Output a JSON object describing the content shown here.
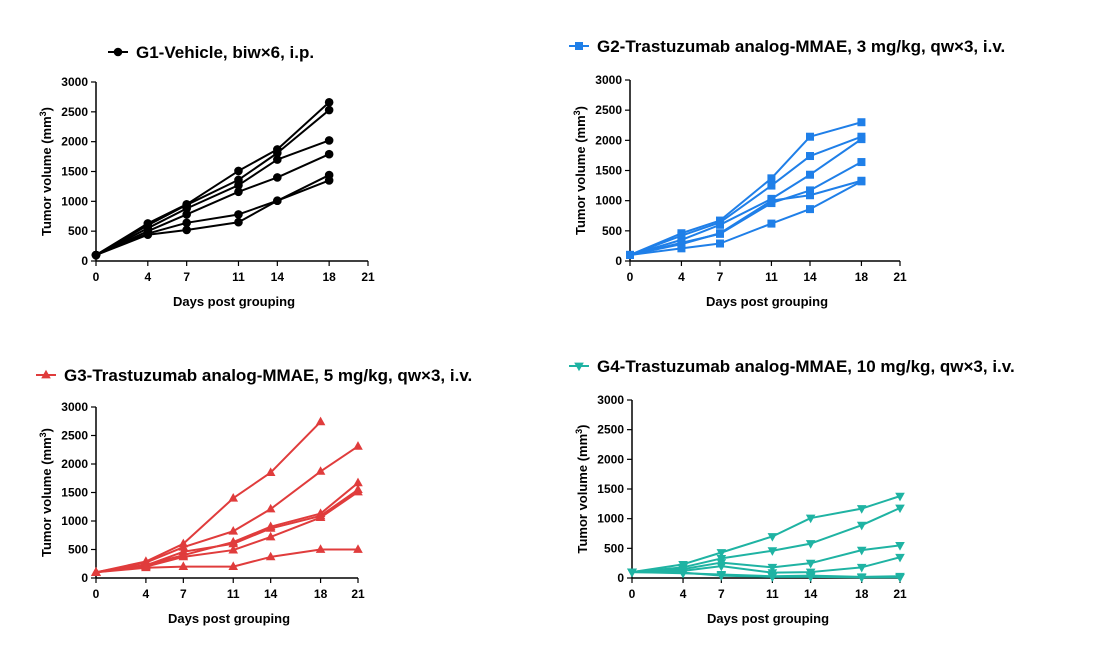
{
  "chart_data": [
    {
      "type": "line",
      "title": "",
      "xlabel": "Days post grouping",
      "ylabel": "Tumor volume (mm",
      "ylabel_sup": "3",
      "ylabel_close": ")",
      "xlim": [
        0,
        21
      ],
      "ylim": [
        0,
        3000
      ],
      "xticks": [
        0,
        4,
        7,
        11,
        14,
        18,
        21
      ],
      "yticks": [
        0,
        500,
        1000,
        1500,
        2000,
        2500,
        3000
      ],
      "xtick_labels": [
        "0",
        "4",
        "7",
        "11",
        "14",
        "18",
        "21"
      ],
      "ytick_labels": [
        "0",
        "500",
        "1000",
        "1500",
        "2000",
        "2500",
        "3000"
      ],
      "grid": false,
      "legend": {
        "label": "G1-Vehicle, biw×6, i.p.",
        "position": "top"
      },
      "marker": "circle",
      "color": "#000000",
      "series": [
        {
          "x": [
            0,
            4,
            7,
            11,
            14,
            18
          ],
          "values": [
            100,
            630,
            950,
            1510,
            1870,
            2660
          ]
        },
        {
          "x": [
            0,
            4,
            7,
            11,
            14,
            18
          ],
          "values": [
            100,
            600,
            940,
            1360,
            1810,
            2530
          ]
        },
        {
          "x": [
            0,
            4,
            7,
            11,
            14,
            18
          ],
          "values": [
            100,
            550,
            880,
            1270,
            1700,
            2020
          ]
        },
        {
          "x": [
            0,
            4,
            7,
            11,
            14,
            18
          ],
          "values": [
            100,
            500,
            780,
            1160,
            1400,
            1790
          ]
        },
        {
          "x": [
            0,
            4,
            7,
            11,
            14,
            18
          ],
          "values": [
            100,
            460,
            640,
            780,
            1010,
            1440
          ]
        },
        {
          "x": [
            0,
            4,
            7,
            11,
            14,
            18
          ],
          "values": [
            100,
            440,
            520,
            650,
            1010,
            1350
          ]
        }
      ]
    },
    {
      "type": "line",
      "title": "",
      "xlabel": "Days post grouping",
      "ylabel": "Tumor volume (mm",
      "ylabel_sup": "3",
      "ylabel_close": ")",
      "xlim": [
        0,
        21
      ],
      "ylim": [
        0,
        3000
      ],
      "xticks": [
        0,
        4,
        7,
        11,
        14,
        18,
        21
      ],
      "yticks": [
        0,
        500,
        1000,
        1500,
        2000,
        2500,
        3000
      ],
      "xtick_labels": [
        "0",
        "4",
        "7",
        "11",
        "14",
        "18",
        "21"
      ],
      "ytick_labels": [
        "0",
        "500",
        "1000",
        "1500",
        "2000",
        "2500",
        "3000"
      ],
      "grid": false,
      "legend": {
        "label": "G2-Trastuzumab analog-MMAE, 3 mg/kg, qw×3, i.v.",
        "position": "top"
      },
      "marker": "square",
      "color": "#1f7fe8",
      "series": [
        {
          "x": [
            0,
            4,
            7,
            11,
            14,
            18
          ],
          "values": [
            100,
            460,
            670,
            1370,
            2060,
            2300
          ]
        },
        {
          "x": [
            0,
            4,
            7,
            11,
            14,
            18
          ],
          "values": [
            100,
            420,
            640,
            1250,
            1740,
            2060
          ]
        },
        {
          "x": [
            0,
            4,
            7,
            11,
            14,
            18
          ],
          "values": [
            100,
            350,
            600,
            1030,
            1430,
            2020
          ]
        },
        {
          "x": [
            0,
            4,
            7,
            11,
            14,
            18
          ],
          "values": [
            100,
            300,
            450,
            960,
            1170,
            1640
          ]
        },
        {
          "x": [
            0,
            4,
            7,
            11,
            14,
            18
          ],
          "values": [
            100,
            280,
            460,
            1000,
            1090,
            1330
          ]
        },
        {
          "x": [
            0,
            4,
            7,
            11,
            14,
            18
          ],
          "values": [
            100,
            210,
            290,
            620,
            860,
            1320
          ]
        }
      ]
    },
    {
      "type": "line",
      "title": "",
      "xlabel": "Days post grouping",
      "ylabel": "Tumor volume (mm",
      "ylabel_sup": "3",
      "ylabel_close": ")",
      "xlim": [
        0,
        21
      ],
      "ylim": [
        0,
        3000
      ],
      "xticks": [
        0,
        4,
        7,
        11,
        14,
        18,
        21
      ],
      "yticks": [
        0,
        500,
        1000,
        1500,
        2000,
        2500,
        3000
      ],
      "xtick_labels": [
        "0",
        "4",
        "7",
        "11",
        "14",
        "18",
        "21"
      ],
      "ytick_labels": [
        "0",
        "500",
        "1000",
        "1500",
        "2000",
        "2500",
        "3000"
      ],
      "grid": false,
      "legend": {
        "label": "G3-Trastuzumab analog-MMAE, 5 mg/kg, qw×3, i.v.",
        "position": "top"
      },
      "marker": "triangle-up",
      "color": "#e03c3c",
      "series": [
        {
          "x": [
            0,
            4,
            7,
            11,
            14,
            18
          ],
          "values": [
            100,
            290,
            600,
            1400,
            1850,
            2740
          ]
        },
        {
          "x": [
            0,
            4,
            7,
            11,
            14,
            18,
            21
          ],
          "values": [
            100,
            270,
            540,
            820,
            1210,
            1870,
            2310
          ]
        },
        {
          "x": [
            0,
            4,
            7,
            11,
            14,
            18,
            21
          ],
          "values": [
            100,
            230,
            400,
            630,
            900,
            1130,
            1670
          ]
        },
        {
          "x": [
            0,
            4,
            7,
            11,
            14,
            18,
            21
          ],
          "values": [
            100,
            220,
            460,
            600,
            870,
            1090,
            1550
          ]
        },
        {
          "x": [
            0,
            4,
            7,
            11,
            14,
            18,
            21
          ],
          "values": [
            100,
            200,
            370,
            490,
            720,
            1060,
            1510
          ]
        },
        {
          "x": [
            0,
            4,
            7,
            11,
            14,
            18,
            21
          ],
          "values": [
            100,
            180,
            200,
            200,
            370,
            500,
            500
          ]
        }
      ]
    },
    {
      "type": "line",
      "title": "",
      "xlabel": "Days post grouping",
      "ylabel": "Tumor volume (mm",
      "ylabel_sup": "3",
      "ylabel_close": ")",
      "xlim": [
        0,
        21
      ],
      "ylim": [
        0,
        3000
      ],
      "xticks": [
        0,
        4,
        7,
        11,
        14,
        18,
        21
      ],
      "yticks": [
        0,
        500,
        1000,
        1500,
        2000,
        2500,
        3000
      ],
      "xtick_labels": [
        "0",
        "4",
        "7",
        "11",
        "14",
        "18",
        "21"
      ],
      "ytick_labels": [
        "0",
        "500",
        "1000",
        "1500",
        "2000",
        "2500",
        "3000"
      ],
      "grid": false,
      "legend": {
        "label": "G4-Trastuzumab analog-MMAE, 10 mg/kg, qw×3, i.v.",
        "position": "top"
      },
      "marker": "triangle-down",
      "color": "#1fb3a3",
      "series": [
        {
          "x": [
            0,
            4,
            7,
            11,
            14,
            18,
            21
          ],
          "values": [
            100,
            230,
            430,
            700,
            1010,
            1170,
            1380
          ]
        },
        {
          "x": [
            0,
            4,
            7,
            11,
            14,
            18,
            21
          ],
          "values": [
            100,
            180,
            330,
            460,
            580,
            890,
            1180
          ]
        },
        {
          "x": [
            0,
            4,
            7,
            11,
            14,
            18,
            21
          ],
          "values": [
            100,
            150,
            260,
            180,
            250,
            470,
            550
          ]
        },
        {
          "x": [
            0,
            4,
            7,
            11,
            14,
            18,
            21
          ],
          "values": [
            100,
            120,
            200,
            90,
            100,
            180,
            350
          ]
        },
        {
          "x": [
            0,
            4,
            7,
            11,
            14,
            18,
            21
          ],
          "values": [
            100,
            80,
            60,
            30,
            40,
            20,
            30
          ]
        },
        {
          "x": [
            0,
            4,
            7,
            11,
            14,
            18,
            21
          ],
          "values": [
            100,
            90,
            40,
            20,
            20,
            10,
            10
          ]
        }
      ]
    }
  ]
}
